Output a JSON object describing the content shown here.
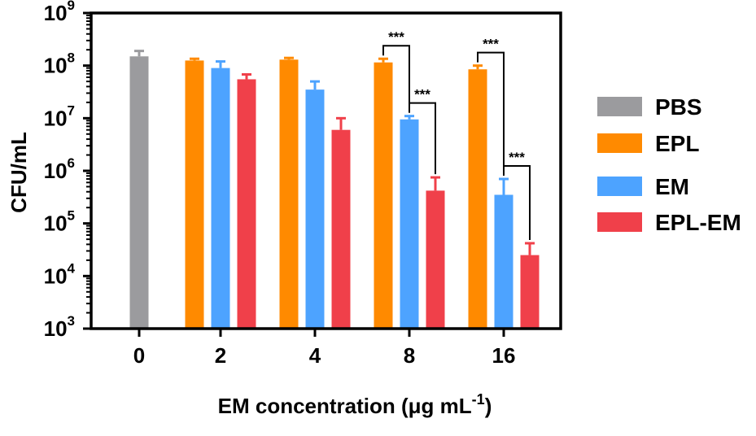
{
  "chart_data": {
    "type": "bar",
    "xlabel": "EM concentration (μg mL",
    "xlabel_superscript": "-1",
    "xlabel_suffix": ")",
    "ylabel": "CFU/mL",
    "yscale": "log",
    "ylim": [
      1000,
      1000000000
    ],
    "y_ticks": [
      {
        "base": "10",
        "exp": "3",
        "value": 1000
      },
      {
        "base": "10",
        "exp": "4",
        "value": 10000
      },
      {
        "base": "10",
        "exp": "5",
        "value": 100000
      },
      {
        "base": "10",
        "exp": "6",
        "value": 1000000
      },
      {
        "base": "10",
        "exp": "7",
        "value": 10000000
      },
      {
        "base": "10",
        "exp": "8",
        "value": 100000000
      },
      {
        "base": "10",
        "exp": "9",
        "value": 1000000000
      }
    ],
    "categories": [
      "0",
      "2",
      "4",
      "8",
      "16"
    ],
    "legend_position": "right",
    "series": [
      {
        "name": "PBS",
        "color": "#9b9b9e",
        "values": [
          150000000,
          null,
          null,
          null,
          null
        ],
        "errors": [
          190000000,
          null,
          null,
          null,
          null
        ]
      },
      {
        "name": "EPL",
        "color": "#ff8a00",
        "values": [
          null,
          125000000,
          130000000,
          115000000,
          85000000
        ],
        "errors": [
          null,
          135000000,
          140000000,
          135000000,
          100000000
        ]
      },
      {
        "name": "EM",
        "color": "#4da3ff",
        "values": [
          null,
          90000000,
          35000000,
          9500000,
          350000
        ],
        "errors": [
          null,
          120000000,
          50000000,
          11000000,
          700000
        ]
      },
      {
        "name": "EPL-EM",
        "color": "#f0404a",
        "values": [
          null,
          55000000,
          6000000,
          420000,
          25000
        ],
        "errors": [
          null,
          68000000,
          10000000,
          750000,
          42000
        ]
      }
    ],
    "annotations": [
      {
        "text": "***",
        "category": "8",
        "from": "EPL",
        "to": "EM"
      },
      {
        "text": "***",
        "category": "8",
        "from": "EM",
        "to": "EPL-EM"
      },
      {
        "text": "***",
        "category": "16",
        "from": "EPL",
        "to": "EM"
      },
      {
        "text": "***",
        "category": "16",
        "from": "EM",
        "to": "EPL-EM"
      }
    ]
  }
}
